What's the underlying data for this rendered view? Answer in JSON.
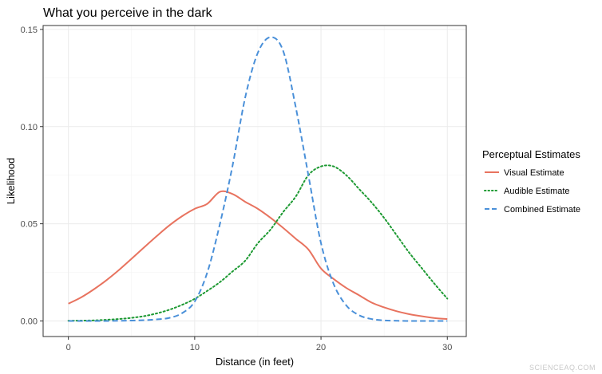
{
  "watermark": "SCIENCEAQ.COM",
  "chart_data": {
    "type": "line",
    "title": "What you perceive in the dark",
    "xlabel": "Distance (in feet)",
    "ylabel": "Likelihood",
    "xlim": [
      -2,
      31.5
    ],
    "ylim": [
      -0.008,
      0.152
    ],
    "xticks": [
      0,
      10,
      20,
      30
    ],
    "xtick_labels": [
      "0",
      "10",
      "20",
      "30"
    ],
    "yticks": [
      0,
      0.05,
      0.1,
      0.15
    ],
    "ytick_labels": [
      "0.00",
      "0.05",
      "0.10",
      "0.15"
    ],
    "grid": true,
    "legend": {
      "title": "Perceptual Estimates",
      "position": "right"
    },
    "x": [
      0,
      1,
      2,
      3,
      4,
      5,
      6,
      7,
      8,
      9,
      10,
      11,
      12,
      13,
      14,
      15,
      16,
      17,
      18,
      19,
      20,
      21,
      22,
      23,
      24,
      25,
      26,
      27,
      28,
      29,
      30
    ],
    "series": [
      {
        "name": "Visual Estimate",
        "color": "#e8735f",
        "dash": "solid",
        "values": [
          0.0089,
          0.0121,
          0.0162,
          0.0209,
          0.0262,
          0.032,
          0.0379,
          0.0437,
          0.0492,
          0.0539,
          0.0577,
          0.0603,
          0.0665,
          0.0653,
          0.0613,
          0.0577,
          0.0531,
          0.0479,
          0.0423,
          0.0368,
          0.027,
          0.0216,
          0.017,
          0.0133,
          0.0095,
          0.007,
          0.005,
          0.0035,
          0.0024,
          0.0015,
          0.001
        ]
      },
      {
        "name": "Audible Estimate",
        "color": "#1e9a33",
        "dash": "dotted",
        "values": [
          0.0001,
          0.0002,
          0.0003,
          0.0006,
          0.001,
          0.0016,
          0.0025,
          0.0039,
          0.0058,
          0.0083,
          0.0114,
          0.0155,
          0.02,
          0.0255,
          0.031,
          0.04,
          0.047,
          0.056,
          0.064,
          0.075,
          0.0795,
          0.0795,
          0.075,
          0.068,
          0.061,
          0.053,
          0.044,
          0.035,
          0.027,
          0.019,
          0.0115
        ]
      },
      {
        "name": "Combined Estimate",
        "color": "#4a90d9",
        "dash": "dashed",
        "values": [
          0.0,
          0.0,
          0.0,
          0.0,
          0.0001,
          0.0002,
          0.0004,
          0.0008,
          0.0016,
          0.004,
          0.01,
          0.025,
          0.05,
          0.08,
          0.115,
          0.138,
          0.146,
          0.139,
          0.11,
          0.075,
          0.04,
          0.019,
          0.008,
          0.003,
          0.001,
          0.0003,
          0.0001,
          0.0,
          0.0,
          0.0,
          0.0
        ]
      }
    ]
  }
}
